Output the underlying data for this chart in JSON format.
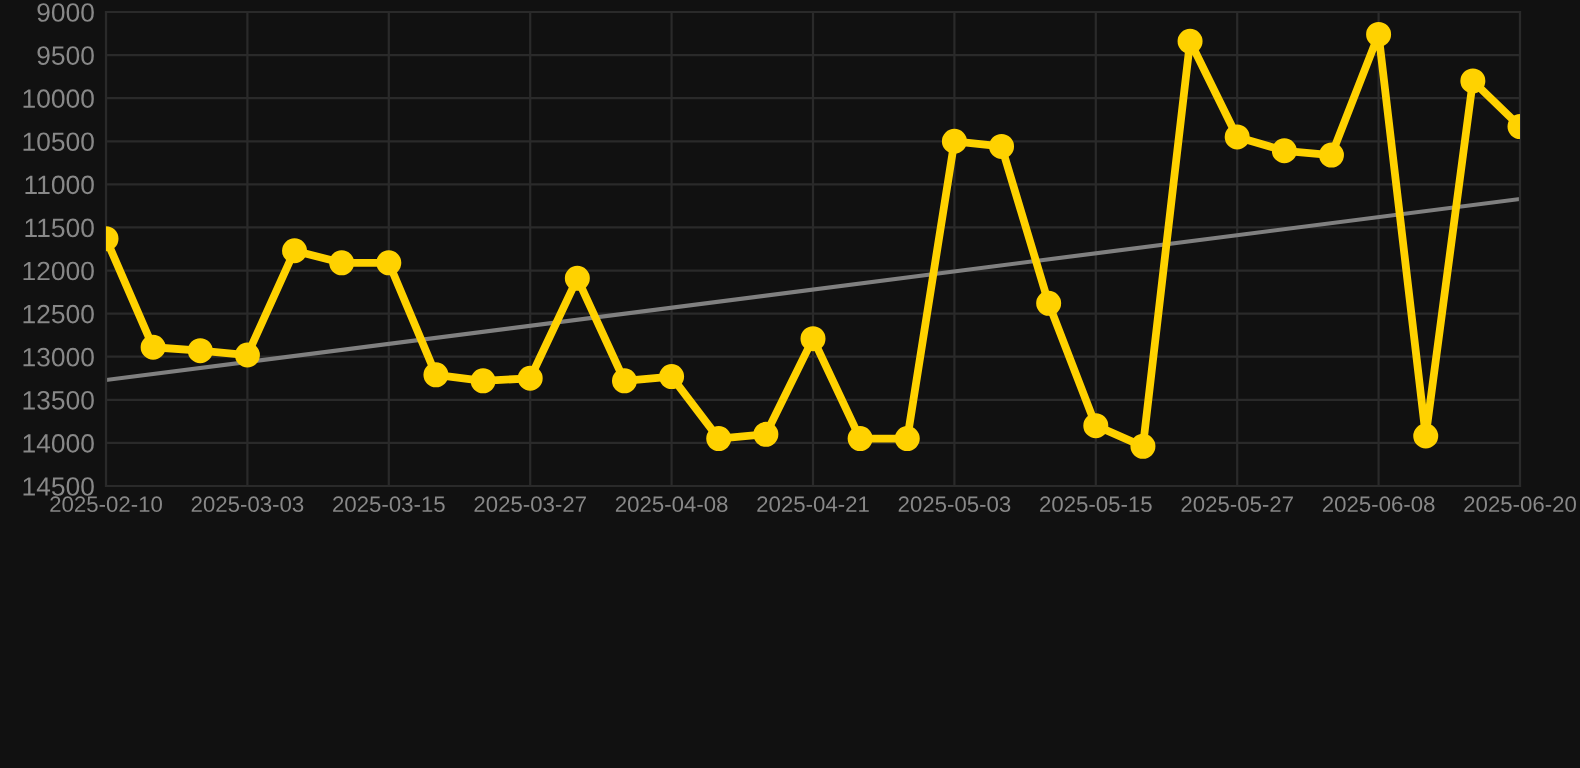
{
  "chart_data": {
    "type": "line",
    "categories": [
      "2025-02-10",
      null,
      null,
      "2025-03-03",
      null,
      null,
      "2025-03-15",
      null,
      null,
      "2025-03-27",
      null,
      null,
      "2025-04-08",
      null,
      null,
      "2025-04-21",
      null,
      null,
      "2025-05-03",
      null,
      null,
      "2025-05-15",
      null,
      null,
      "2025-05-27",
      null,
      null,
      "2025-06-08",
      null,
      null,
      "2025-06-20"
    ],
    "series": [
      {
        "color": "#ffd200",
        "marker": "circle",
        "values": [
          11630,
          12890,
          12930,
          12980,
          11770,
          11910,
          11910,
          13210,
          13280,
          13250,
          12090,
          13280,
          13230,
          13950,
          13900,
          12790,
          13950,
          13950,
          10500,
          10560,
          12380,
          13800,
          14040,
          9340,
          10450,
          10610,
          10660,
          9260,
          13920,
          9800,
          10330
        ]
      },
      {
        "color": "#808080",
        "marker": "none",
        "values": [
          13270,
          null,
          null,
          null,
          null,
          null,
          null,
          null,
          null,
          null,
          null,
          null,
          null,
          null,
          null,
          null,
          null,
          null,
          null,
          null,
          null,
          null,
          null,
          null,
          null,
          null,
          null,
          null,
          null,
          null,
          11170
        ]
      }
    ],
    "ylim": [
      14500,
      9000
    ],
    "yticks": [
      9000,
      9500,
      10000,
      10500,
      11000,
      11500,
      12000,
      12500,
      13000,
      13500,
      14000,
      14500
    ],
    "grid": true
  }
}
